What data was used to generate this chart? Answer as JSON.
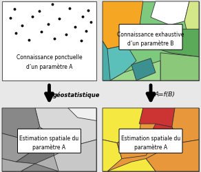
{
  "fig_width": 2.92,
  "fig_height": 2.51,
  "dpi": 100,
  "bg_color": "#e8e8e8",
  "box1_text1": "Connaissance ponctuelle",
  "box1_text2": "d’un paramètre A",
  "arrow1_label": "géostatistique",
  "arrow2_label": "A=f(B)",
  "box2_text1": "Connaissance exhaustive",
  "box2_text2": "d’un paramètre B",
  "box3_text1": "Estimation spatiale du",
  "box3_text2": "paramètre A",
  "box4_text1": "Estimation spatiale du",
  "box4_text2": "paramètre A",
  "white": "#ffffff",
  "black": "#000000"
}
